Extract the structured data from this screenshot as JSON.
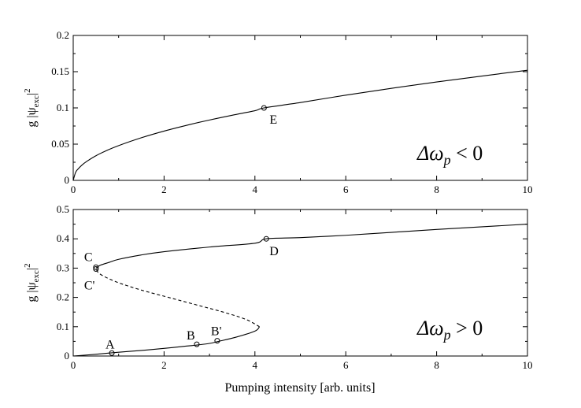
{
  "chart_data": [
    {
      "type": "line",
      "id": "top",
      "xlim": [
        0,
        10
      ],
      "ylim": [
        0,
        0.2
      ],
      "xticks": [
        0,
        2,
        4,
        6,
        8,
        10
      ],
      "yticks": [
        0,
        0.05,
        0.1,
        0.15,
        0.2
      ],
      "xtick_labels": [
        "0",
        "2",
        "4",
        "6",
        "8",
        "10"
      ],
      "ytick_labels": [
        "0",
        "0.05",
        "0.1",
        "0.15",
        "0.2"
      ],
      "ylabel": "g |ψexc|²",
      "ylabel_base": "g |ψ",
      "ylabel_sub": "exc",
      "ylabel_end": "|",
      "ylabel_sup": "2",
      "annotation": "Δω_p < 0",
      "annotation_main": "Δω",
      "annotation_sub": "p",
      "annotation_tail": " < 0",
      "series": [
        {
          "style": "solid",
          "x": [
            0,
            0.05,
            0.1,
            0.2,
            0.3,
            0.5,
            0.75,
            1,
            1.5,
            2,
            2.5,
            3,
            3.5,
            4,
            4.2,
            5,
            6,
            7,
            8,
            9,
            10
          ],
          "y": [
            0,
            0.0107,
            0.0152,
            0.0215,
            0.0263,
            0.034,
            0.0416,
            0.048,
            0.0588,
            0.068,
            0.076,
            0.0833,
            0.0899,
            0.0961,
            0.1,
            0.1074,
            0.1176,
            0.127,
            0.1358,
            0.144,
            0.152
          ]
        }
      ],
      "points": [
        {
          "label": "E",
          "x": 4.2,
          "y": 0.1
        }
      ]
    },
    {
      "type": "line",
      "id": "bottom",
      "xlim": [
        0,
        10
      ],
      "ylim": [
        0,
        0.5
      ],
      "xticks": [
        0,
        2,
        4,
        6,
        8,
        10
      ],
      "yticks": [
        0,
        0.1,
        0.2,
        0.3,
        0.4,
        0.5
      ],
      "xtick_labels": [
        "0",
        "2",
        "4",
        "6",
        "8",
        "10"
      ],
      "ytick_labels": [
        "0",
        "0.1",
        "0.2",
        "0.3",
        "0.4",
        "0.5"
      ],
      "xlabel": "Pumping intensity  [arb. units]",
      "ylabel": "g |ψexc|²",
      "ylabel_base": "g |ψ",
      "ylabel_sub": "exc",
      "ylabel_end": "|",
      "ylabel_sup": "2",
      "annotation": "Δω_p > 0",
      "annotation_main": "Δω",
      "annotation_sub": "p",
      "annotation_tail": " > 0",
      "series": [
        {
          "style": "solid",
          "x": [
            0,
            0.5,
            1,
            1.5,
            2,
            2.5,
            2.7,
            3.0,
            3.2,
            3.6,
            4.0,
            4.1
          ],
          "y": [
            0,
            0.006,
            0.013,
            0.019,
            0.026,
            0.034,
            0.037,
            0.043,
            0.05,
            0.065,
            0.085,
            0.1
          ]
        },
        {
          "style": "dashed",
          "x": [
            4.1,
            3.8,
            3.3,
            2.7,
            2.1,
            1.5,
            1.0,
            0.7,
            0.55,
            0.5
          ],
          "y": [
            0.1,
            0.125,
            0.15,
            0.175,
            0.2,
            0.225,
            0.25,
            0.27,
            0.285,
            0.3
          ]
        },
        {
          "style": "solid",
          "x": [
            0.5,
            0.6,
            0.8,
            1,
            1.5,
            2,
            3,
            4,
            4.25,
            5,
            6,
            7,
            8,
            9,
            10
          ],
          "y": [
            0.3,
            0.31,
            0.32,
            0.33,
            0.345,
            0.356,
            0.372,
            0.385,
            0.4,
            0.404,
            0.412,
            0.422,
            0.432,
            0.441,
            0.45
          ]
        }
      ],
      "points": [
        {
          "label": "A",
          "x": 0.85,
          "y": 0.01
        },
        {
          "label": "B",
          "x": 2.72,
          "y": 0.04
        },
        {
          "label": "B'",
          "x": 3.17,
          "y": 0.052
        },
        {
          "label": "C",
          "x": 0.5,
          "y": 0.303
        },
        {
          "label": "C'",
          "x": 0.5,
          "y": 0.297
        },
        {
          "label": "D",
          "x": 4.25,
          "y": 0.4
        }
      ]
    }
  ]
}
